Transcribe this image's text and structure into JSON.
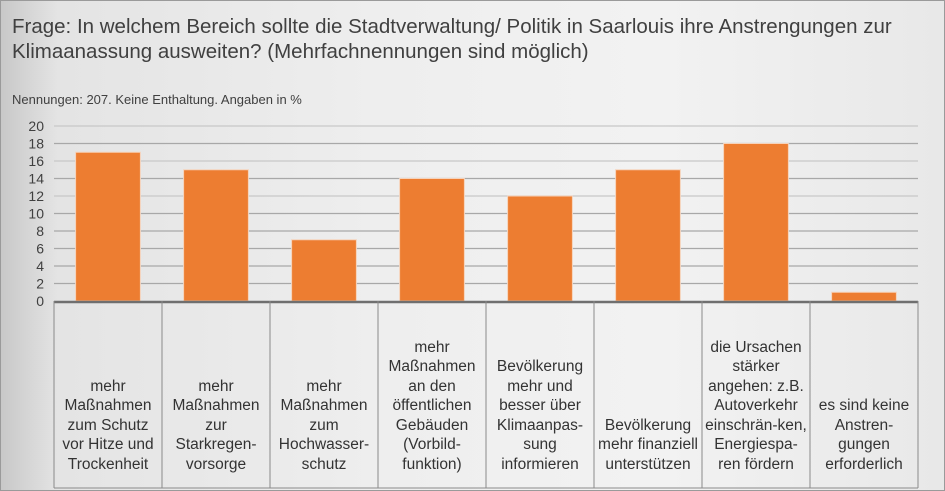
{
  "title": "Frage: In welchem Bereich sollte die Stadtverwaltung/ Politik in Saarlouis ihre Anstrengungen zur Klimaanassung ausweiten? (Mehrfachnennungen sind möglich)",
  "subtitle": "Nennungen: 207. Keine Enthaltung. Angaben in %",
  "chart_data": {
    "type": "bar",
    "title": "Frage: In welchem Bereich sollte die Stadtverwaltung/ Politik in Saarlouis ihre Anstrengungen zur Klimaanassung ausweiten? (Mehrfachnennungen sind möglich)",
    "categories": [
      "mehr Maßnahmen zum Schutz vor Hitze und Trockenheit",
      "mehr Maßnahmen zur Starkregen-vorsorge",
      "mehr Maßnahmen zum Hochwasser-schutz",
      "mehr Maßnahmen an den öffentlichen Gebäuden (Vorbild-funktion)",
      "Bevölkerung mehr und besser über Klimaanpas-sung informieren",
      "Bevölkerung mehr finanziell unterstützen",
      "die Ursachen stärker angehen: z.B. Autoverkehr einschrän-ken, Energiespa-ren fördern",
      "es sind keine Anstren-gungen erforderlich"
    ],
    "values": [
      17,
      15,
      7,
      14,
      12,
      15,
      18,
      1
    ],
    "ylim": [
      0,
      20
    ],
    "yticks": [
      "0",
      "2",
      "4",
      "6",
      "8",
      "10",
      "12",
      "14",
      "16",
      "18",
      "20"
    ],
    "grid": true,
    "color": "#ed7d31"
  }
}
